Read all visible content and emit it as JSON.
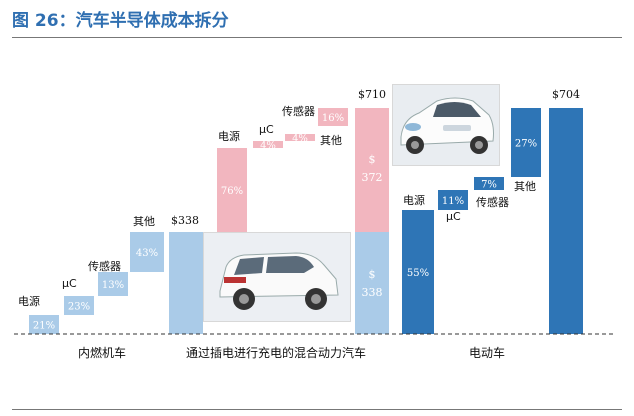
{
  "header": {
    "title": "图 26：汽车半导体成本拆分"
  },
  "colors": {
    "title": "#2f6fb1",
    "ice": "#aacbe8",
    "hybrid_existing": "#aacbe8",
    "hybrid_added": "#f2b6bf",
    "ev": "#2e75b6",
    "label_light": "#ffffff"
  },
  "chart_data": {
    "type": "bar",
    "subtype": "waterfall",
    "groups": [
      "内燃机车",
      "通过插电进行充电的混合动力汽车",
      "电动车"
    ],
    "bars": [
      {
        "group": "内燃机车",
        "kind": "step",
        "category": "电源",
        "share_label": "21%",
        "color": "ice"
      },
      {
        "group": "内燃机车",
        "kind": "step",
        "category": "μC",
        "share_label": "23%",
        "color": "ice"
      },
      {
        "group": "内燃机车",
        "kind": "step",
        "category": "传感器",
        "share_label": "13%",
        "color": "ice"
      },
      {
        "group": "内燃机车",
        "kind": "step",
        "category": "其他",
        "share_label": "43%",
        "color": "ice"
      },
      {
        "group": "通过插电进行充电的混合动力汽车",
        "kind": "total",
        "category": "",
        "value": 338,
        "value_label": "$338",
        "color": "ice"
      },
      {
        "group": "通过插电进行充电的混合动力汽车",
        "kind": "step",
        "category": "电源",
        "share_label": "76%",
        "color": "hybrid_added"
      },
      {
        "group": "通过插电进行充电的混合动力汽车",
        "kind": "step",
        "category": "μC",
        "share_label": "4%",
        "color": "hybrid_added"
      },
      {
        "group": "通过插电进行充电的混合动力汽车",
        "kind": "step",
        "category": "传感器",
        "share_label": "4%",
        "color": "hybrid_added"
      },
      {
        "group": "通过插电进行充电的混合动力汽车",
        "kind": "step",
        "category": "其他",
        "share_label": "16%",
        "color": "hybrid_added"
      },
      {
        "group": "通过插电进行充电的混合动力汽车",
        "kind": "stack",
        "category": "",
        "value": 710,
        "value_label": "$710",
        "segments": [
          {
            "value": 338,
            "label_line1": "$",
            "label_line2": "338",
            "color": "hybrid_existing"
          },
          {
            "value": 372,
            "label_line1": "$",
            "label_line2": "372",
            "color": "hybrid_added"
          }
        ]
      },
      {
        "group": "电动车",
        "kind": "step",
        "category": "电源",
        "share_label": "55%",
        "color": "ev"
      },
      {
        "group": "电动车",
        "kind": "step",
        "category": "μC",
        "share_label": "11%",
        "color": "ev"
      },
      {
        "group": "电动车",
        "kind": "step",
        "category": "传感器",
        "share_label": "7%",
        "color": "ev"
      },
      {
        "group": "电动车",
        "kind": "step",
        "category": "其他",
        "share_label": "27%",
        "color": "ev"
      },
      {
        "group": "电动车",
        "kind": "total",
        "category": "",
        "value": 704,
        "value_label": "$704",
        "color": "ev"
      }
    ],
    "baseline": "dashed",
    "grid": false,
    "legend": "none"
  }
}
